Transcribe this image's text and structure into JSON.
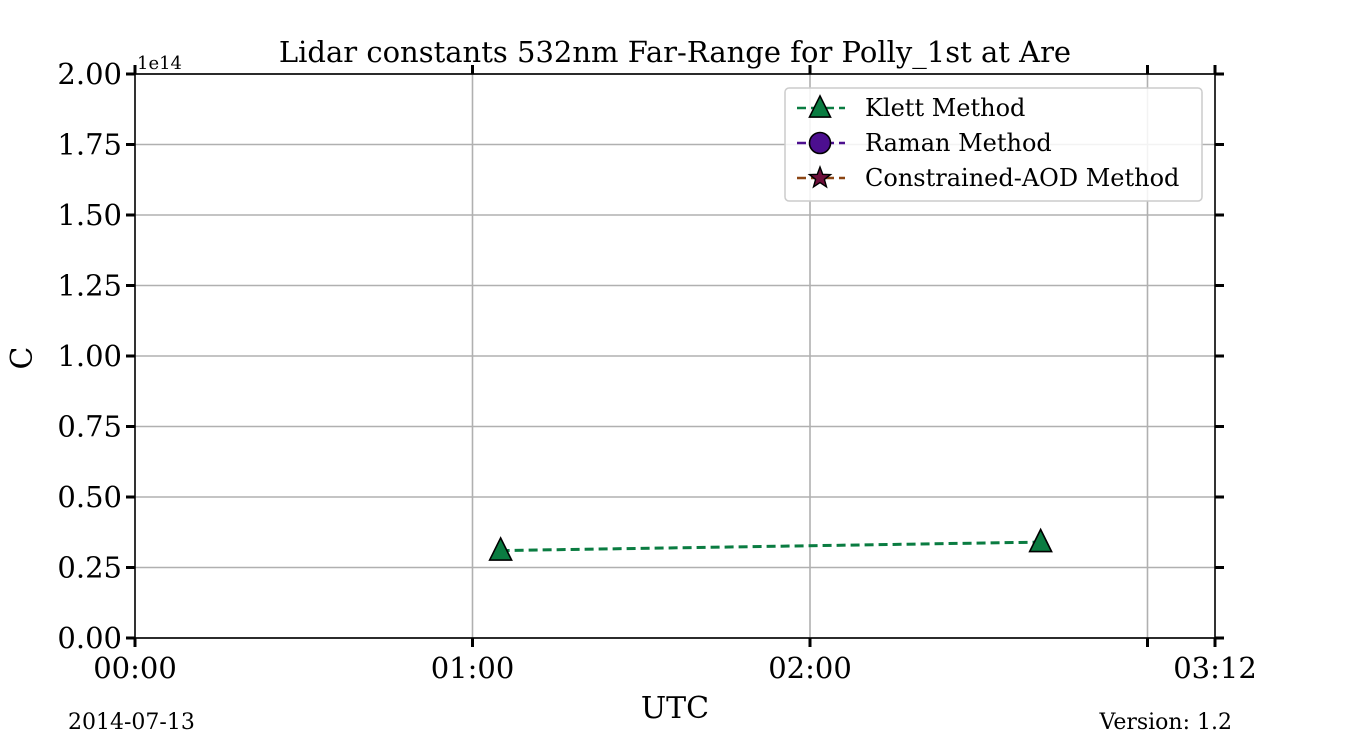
{
  "chart_data": {
    "type": "line",
    "title": "Lidar constants 532nm Far-Range for Polly_1st at Are",
    "xlabel": "UTC",
    "ylabel": "C",
    "y_offset_label": "1e14",
    "xlim_minutes": [
      0,
      192
    ],
    "ylim": [
      0,
      2.0
    ],
    "x_ticks": [
      {
        "minute": 0,
        "label": "00:00"
      },
      {
        "minute": 60,
        "label": "01:00"
      },
      {
        "minute": 120,
        "label": "02:00"
      },
      {
        "minute": 180,
        "label": ""
      },
      {
        "minute": 192,
        "label": "03:12"
      }
    ],
    "y_ticks": [
      {
        "value": 0.0,
        "label": "0.00"
      },
      {
        "value": 0.25,
        "label": "0.25"
      },
      {
        "value": 0.5,
        "label": "0.50"
      },
      {
        "value": 0.75,
        "label": "0.75"
      },
      {
        "value": 1.0,
        "label": "1.00"
      },
      {
        "value": 1.25,
        "label": "1.25"
      },
      {
        "value": 1.5,
        "label": "1.50"
      },
      {
        "value": 1.75,
        "label": "1.75"
      },
      {
        "value": 2.0,
        "label": "2.00"
      }
    ],
    "grid": true,
    "legend_position": "top-right",
    "series": [
      {
        "name": "Klett Method",
        "marker": "triangle",
        "color": "#0a7c41",
        "points": [
          {
            "x": "01:05",
            "minute": 65,
            "y": 0.31
          },
          {
            "x": "02:41",
            "minute": 161,
            "y": 0.34
          }
        ]
      },
      {
        "name": "Raman Method",
        "marker": "circle",
        "color": "#4c0f8f",
        "points": []
      },
      {
        "name": "Constrained-AOD Method",
        "marker": "star",
        "color": "#6e0f3a",
        "line_color": "#8b4513",
        "points": []
      }
    ]
  },
  "footer": {
    "date": "2014-07-13",
    "version": "Version: 1.2"
  }
}
